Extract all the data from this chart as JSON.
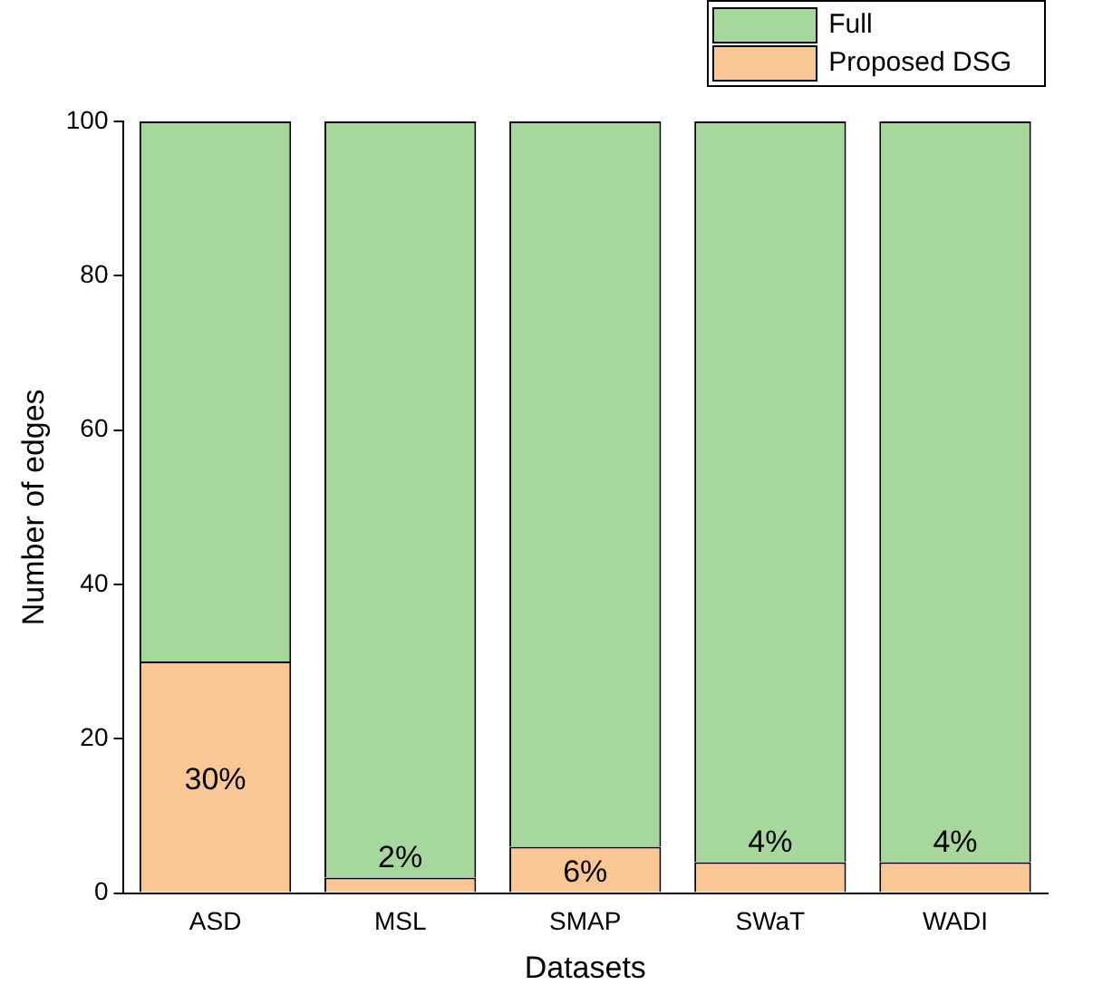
{
  "chart_data": {
    "type": "bar",
    "stacked": true,
    "xlabel": "Datasets",
    "ylabel": "Number of edges",
    "categories": [
      "ASD",
      "MSL",
      "SMAP",
      "SWaT",
      "WADI"
    ],
    "series": [
      {
        "name": "Proposed DSG",
        "color": "#f9c794",
        "values": [
          30,
          2,
          6,
          4,
          4
        ],
        "value_labels": [
          "30%",
          "2%",
          "6%",
          "4%",
          "4%"
        ]
      },
      {
        "name": "Full",
        "color": "#a6d89e",
        "values": [
          70,
          98,
          94,
          96,
          96
        ]
      }
    ],
    "ylim": [
      0,
      100
    ],
    "yticks": [
      0,
      20,
      40,
      60,
      80,
      100
    ],
    "grid": false,
    "legend": "top right"
  }
}
